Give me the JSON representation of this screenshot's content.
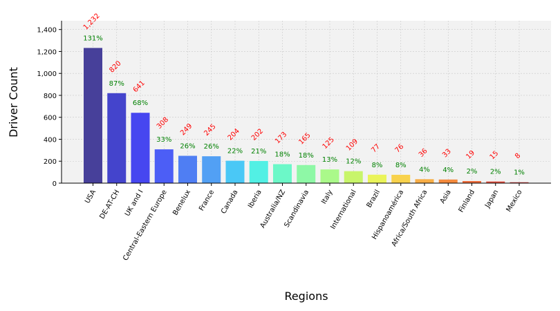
{
  "chart_data": {
    "type": "bar",
    "title": "",
    "xlabel": "Regions",
    "ylabel": "Driver Count",
    "ylim": [
      0,
      1480
    ],
    "yticks": [
      0,
      200,
      400,
      600,
      800,
      1000,
      1200,
      1400
    ],
    "ytick_labels": [
      "0",
      "200",
      "400",
      "600",
      "800",
      "1,000",
      "1,200",
      "1,400"
    ],
    "grid": true,
    "categories": [
      "USA",
      "DE-AT-CH",
      "UK and I",
      "Central-Eastern Europe",
      "Benelux",
      "France",
      "Canada",
      "Iberia",
      "Australia/NZ",
      "Scandinavia",
      "Italy",
      "International",
      "Brazil",
      "Hispanoamérica",
      "Africa/South Africa",
      "Asia",
      "Finland",
      "Japan",
      "Mexico"
    ],
    "values": [
      1232,
      820,
      641,
      308,
      249,
      245,
      204,
      202,
      173,
      165,
      125,
      109,
      77,
      76,
      36,
      33,
      19,
      15,
      8
    ],
    "value_labels": [
      "1,232",
      "820",
      "641",
      "308",
      "249",
      "245",
      "204",
      "202",
      "173",
      "165",
      "125",
      "109",
      "77",
      "76",
      "36",
      "33",
      "19",
      "15",
      "8"
    ],
    "percent_labels": [
      "131%",
      "87%",
      "68%",
      "33%",
      "26%",
      "26%",
      "22%",
      "21%",
      "18%",
      "18%",
      "13%",
      "12%",
      "8%",
      "8%",
      "4%",
      "4%",
      "2%",
      "2%",
      "1%"
    ],
    "bar_colors": [
      "#47409a",
      "#4444cc",
      "#4646f0",
      "#4c5ef6",
      "#4f7ef3",
      "#52a0f4",
      "#4ac8f6",
      "#52f0e4",
      "#6cf8c8",
      "#8ef8a6",
      "#aaf98a",
      "#c8f56a",
      "#eaf45a",
      "#f8d24c",
      "#f8ae46",
      "#f48a3c",
      "#ec6a3a",
      "#e04e3e",
      "#c84040"
    ],
    "value_label_color": "#ff0000",
    "percent_label_color": "#008000",
    "plot_background": "#f2f2f2"
  }
}
